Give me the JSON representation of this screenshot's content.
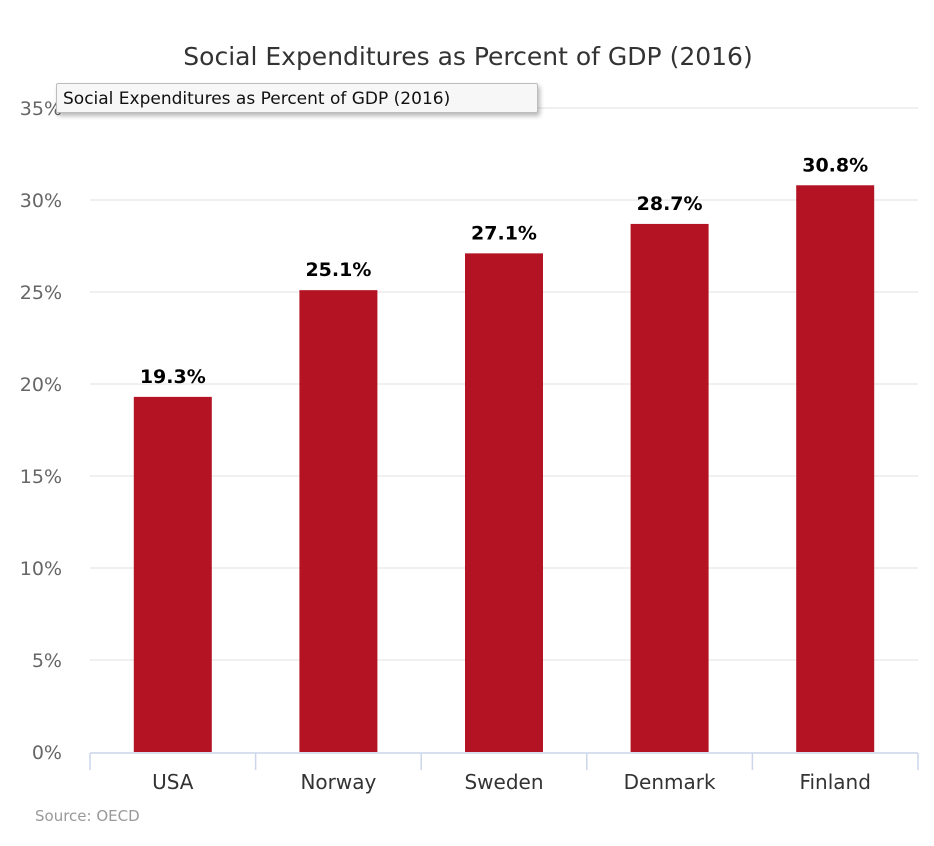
{
  "chart_data": {
    "type": "bar",
    "title": "Social Expenditures as Percent of GDP (2016)",
    "categories": [
      "USA",
      "Norway",
      "Sweden",
      "Denmark",
      "Finland"
    ],
    "values": [
      19.3,
      25.1,
      27.1,
      28.7,
      30.8
    ],
    "data_labels": [
      "19.3%",
      "25.1%",
      "27.1%",
      "28.7%",
      "30.8%"
    ],
    "yticks": [
      "0%",
      "5%",
      "10%",
      "15%",
      "20%",
      "25%",
      "30%",
      "35%"
    ],
    "ylim": [
      0,
      35
    ],
    "grid": true,
    "legend": "none",
    "bar_color": "#b31322",
    "grid_color": "#e6e6e6",
    "axis_color": "#ccd6eb",
    "source": "Source: OECD"
  },
  "tooltip": {
    "text": "Social Expenditures as Percent of GDP (2016)"
  }
}
